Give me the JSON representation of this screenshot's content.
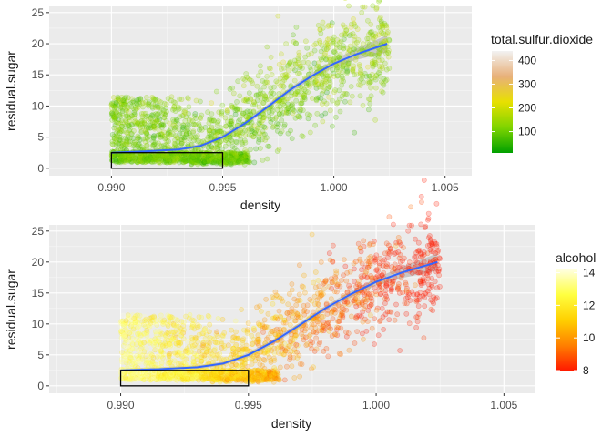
{
  "chart_data": [
    {
      "type": "scatter",
      "xlabel": "density",
      "ylabel": "residual.sugar",
      "xlim": [
        0.9872,
        1.0062
      ],
      "ylim": [
        -1.2,
        26
      ],
      "x_ticks": [
        0.99,
        0.995,
        1.0,
        1.005
      ],
      "x_tick_labels": [
        "0.990",
        "0.995",
        "1.000",
        "1.005"
      ],
      "y_ticks": [
        0,
        5,
        10,
        15,
        20,
        25
      ],
      "y_tick_labels": [
        "0",
        "5",
        "10",
        "15",
        "20",
        "25"
      ],
      "grid": true,
      "legend": {
        "title": "total.sulfur.dioxide",
        "position": "right",
        "ticks": [
          100,
          200,
          300,
          400
        ],
        "tick_labels": [
          "100",
          "200",
          "300",
          "400"
        ],
        "range": [
          10,
          440
        ],
        "colors": [
          "#00a000",
          "#7fd400",
          "#e8e000",
          "#e8b07a",
          "#f2f2f2"
        ]
      },
      "smooth_curve": {
        "color": "#3366ff",
        "x": [
          0.99,
          0.9915,
          0.993,
          0.994,
          0.995,
          0.996,
          0.997,
          0.998,
          0.999,
          1.0,
          1.001,
          1.0024
        ],
        "y": [
          2.5,
          2.7,
          3.0,
          3.6,
          5.0,
          7.2,
          9.8,
          12.5,
          14.8,
          16.8,
          18.3,
          20.0
        ],
        "band": [
          0.3,
          0.3,
          0.3,
          0.3,
          0.4,
          0.4,
          0.4,
          0.4,
          0.5,
          0.6,
          0.9,
          1.4
        ]
      },
      "highlight_box": {
        "x": [
          0.99,
          0.995
        ],
        "y": [
          0,
          2.5
        ]
      },
      "point_cloud": {
        "count": 2200,
        "color_var": "total.sulfur.dioxide"
      }
    },
    {
      "type": "scatter",
      "xlabel": "density",
      "ylabel": "residual.sugar",
      "xlim": [
        0.9872,
        1.0062
      ],
      "ylim": [
        -1.2,
        26
      ],
      "x_ticks": [
        0.99,
        0.995,
        1.0,
        1.005
      ],
      "x_tick_labels": [
        "0.990",
        "0.995",
        "1.000",
        "1.005"
      ],
      "y_ticks": [
        0,
        5,
        10,
        15,
        20,
        25
      ],
      "y_tick_labels": [
        "0",
        "5",
        "10",
        "15",
        "20",
        "25"
      ],
      "grid": true,
      "legend": {
        "title": "alcohol",
        "position": "right",
        "ticks": [
          8,
          10,
          12,
          14
        ],
        "tick_labels": [
          "8",
          "10",
          "12",
          "14"
        ],
        "range": [
          8,
          14.2
        ],
        "colors": [
          "#ff1a00",
          "#ff8000",
          "#ffd000",
          "#ffff40",
          "#ffffe0"
        ]
      },
      "smooth_curve": {
        "color": "#3366ff",
        "x": [
          0.99,
          0.9915,
          0.993,
          0.994,
          0.995,
          0.996,
          0.997,
          0.998,
          0.999,
          1.0,
          1.001,
          1.0024
        ],
        "y": [
          2.5,
          2.7,
          3.0,
          3.6,
          5.0,
          7.2,
          9.8,
          12.5,
          14.8,
          16.8,
          18.3,
          20.0
        ],
        "band": [
          0.3,
          0.3,
          0.3,
          0.3,
          0.4,
          0.4,
          0.4,
          0.4,
          0.5,
          0.6,
          0.9,
          1.4
        ]
      },
      "highlight_box": {
        "x": [
          0.99,
          0.995
        ],
        "y": [
          0,
          2.5
        ]
      },
      "point_cloud": {
        "count": 2200,
        "color_var": "alcohol"
      }
    }
  ]
}
